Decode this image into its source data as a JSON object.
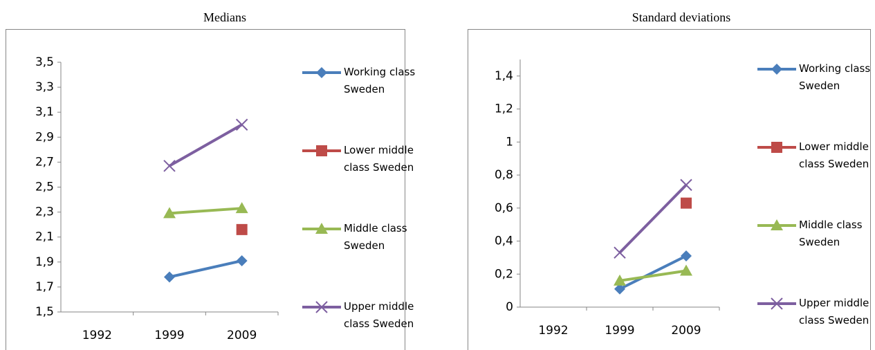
{
  "chart_data": [
    {
      "type": "line",
      "title": "Medians",
      "categories": [
        "1992",
        "1999",
        "2009"
      ],
      "series": [
        {
          "name": "Working class Sweden",
          "color": "#4a7ebb",
          "marker": "diamond",
          "values": [
            null,
            1.78,
            1.91
          ]
        },
        {
          "name": "Lower middle class Sweden",
          "color": "#be4b48",
          "marker": "square",
          "values": [
            null,
            null,
            2.16
          ]
        },
        {
          "name": "Middle class Sweden",
          "color": "#98b954",
          "marker": "triangle",
          "values": [
            null,
            2.29,
            2.33
          ]
        },
        {
          "name": "Upper middle class Sweden",
          "color": "#7d5fa0",
          "marker": "x",
          "values": [
            null,
            2.67,
            3.0
          ]
        }
      ],
      "ylim": [
        1.5,
        3.5
      ],
      "yticks": [
        {
          "value": 1.5,
          "label": "1,5"
        },
        {
          "value": 1.7,
          "label": "1,7"
        },
        {
          "value": 1.9,
          "label": "1,9"
        },
        {
          "value": 2.1,
          "label": "2,1"
        },
        {
          "value": 2.3,
          "label": "2,3"
        },
        {
          "value": 2.5,
          "label": "2,5"
        },
        {
          "value": 2.7,
          "label": "2,7"
        },
        {
          "value": 2.9,
          "label": "2,9"
        },
        {
          "value": 3.1,
          "label": "3,1"
        },
        {
          "value": 3.3,
          "label": "3,3"
        },
        {
          "value": 3.5,
          "label": "3,5"
        }
      ],
      "legend": "right"
    },
    {
      "type": "line",
      "title": "Standard deviations",
      "categories": [
        "1992",
        "1999",
        "2009"
      ],
      "series": [
        {
          "name": "Working class Sweden",
          "color": "#4a7ebb",
          "marker": "diamond",
          "values": [
            null,
            0.11,
            0.31
          ]
        },
        {
          "name": "Lower middle class Sweden",
          "color": "#be4b48",
          "marker": "square",
          "values": [
            null,
            null,
            0.63
          ]
        },
        {
          "name": "Middle class Sweden",
          "color": "#98b954",
          "marker": "triangle",
          "values": [
            null,
            0.16,
            0.22
          ]
        },
        {
          "name": "Upper middle class Sweden",
          "color": "#7d5fa0",
          "marker": "x",
          "values": [
            null,
            0.33,
            0.74
          ]
        }
      ],
      "ylim": [
        0,
        1.5
      ],
      "yticks": [
        0,
        {
          "value": 0.2,
          "label": "0,2"
        },
        {
          "value": 0.4,
          "label": "0,4"
        },
        {
          "value": 0.6,
          "label": "0,6"
        },
        {
          "value": 0.8,
          "label": "0,8"
        },
        1,
        {
          "value": 1.2,
          "label": "1,2"
        },
        {
          "value": 1.4,
          "label": "1,4"
        }
      ],
      "legend": "right"
    }
  ]
}
